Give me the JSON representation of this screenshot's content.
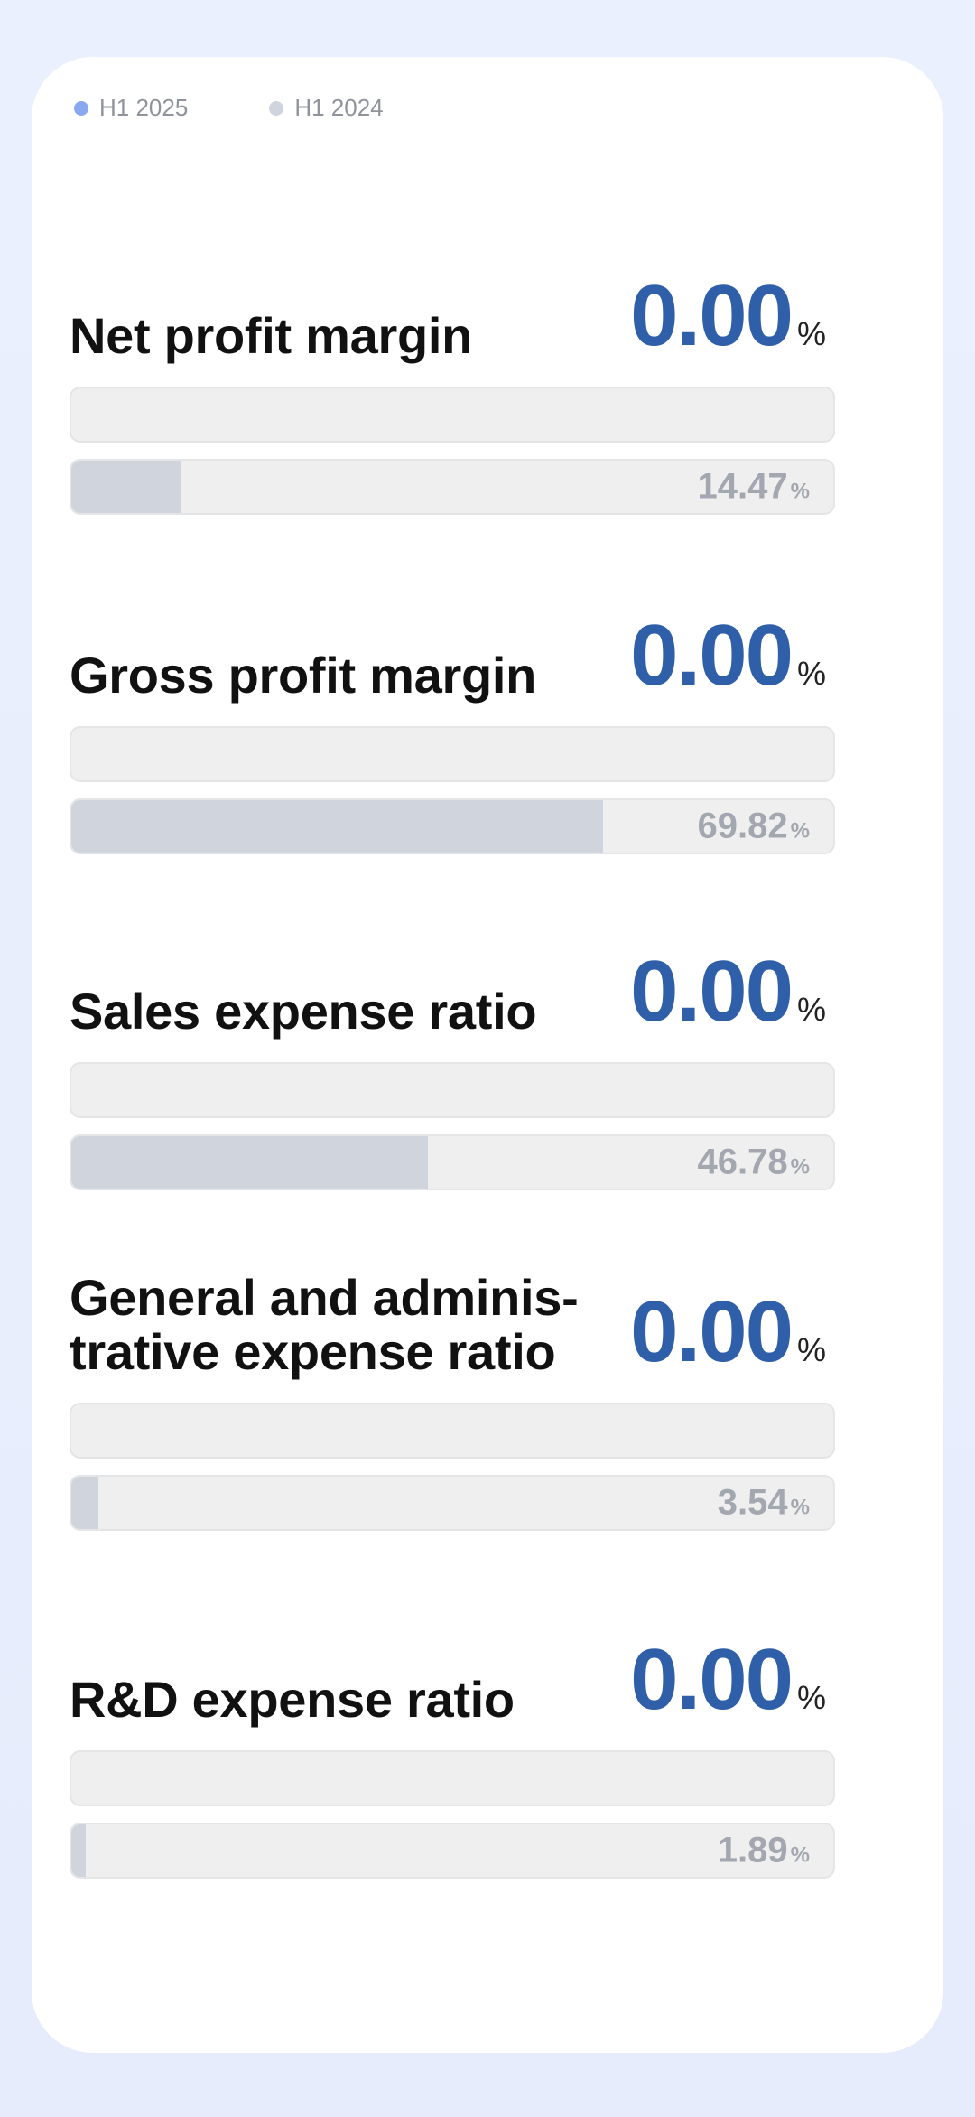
{
  "chart_data": {
    "type": "bar",
    "orientation": "horizontal",
    "unit": "%",
    "legend_position": "top-left",
    "categories": [
      "Net profit margin",
      "Gross profit margin",
      "Sales expense ratio",
      "General and adminis- trative expense ratio",
      "R&D expense ratio"
    ],
    "series": [
      {
        "name": "H1 2025",
        "color": "#8aa8f0",
        "values": [
          0.0,
          0.0,
          0.0,
          0.0,
          0.0
        ],
        "labels": [
          "0.00",
          "0.00",
          "0.00",
          "0.00",
          "0.00"
        ]
      },
      {
        "name": "H1 2024",
        "color": "#cfd4dd",
        "values": [
          14.47,
          69.82,
          46.78,
          3.54,
          1.89
        ],
        "labels": [
          "14.47",
          "69.82",
          "46.78",
          "3.54",
          "1.89"
        ]
      }
    ],
    "xlim": [
      0,
      100
    ],
    "percent_symbol": "%"
  },
  "colors": {
    "primary_value": "#2f5fa9",
    "bar_track": "#efefef",
    "legend_2025": "#8aa8f0",
    "legend_2024": "#cfd4dd"
  }
}
